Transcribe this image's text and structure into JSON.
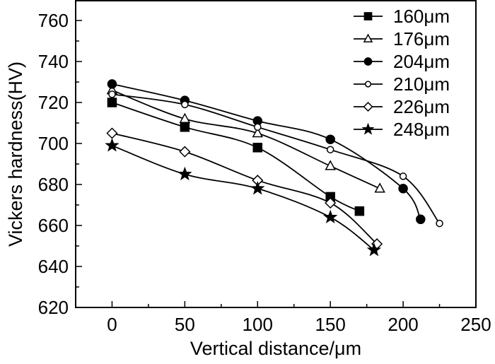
{
  "chart_data": {
    "type": "line",
    "title": "",
    "xlabel": "Vertical distance/μm",
    "ylabel": "Vickers hardness(HV)",
    "xlim": [
      -25,
      250
    ],
    "ylim": [
      620,
      770
    ],
    "xticks": [
      0,
      50,
      100,
      150,
      200,
      250
    ],
    "yticks": [
      620,
      640,
      660,
      680,
      700,
      720,
      740,
      760
    ],
    "xtick_labels": [
      "0",
      "50",
      "100",
      "150",
      "200",
      "250"
    ],
    "ytick_labels": [
      "620",
      "640",
      "660",
      "680",
      "700",
      "720",
      "740",
      "760"
    ],
    "grid": false,
    "legend_placement": "top-right",
    "series": [
      {
        "name": "160μm",
        "marker": "filled-square",
        "x": [
          0,
          50,
          100,
          150,
          170
        ],
        "y": [
          720,
          708,
          698,
          674,
          667
        ]
      },
      {
        "name": "176μm",
        "marker": "open-triangle",
        "x": [
          0,
          50,
          100,
          150,
          184
        ],
        "y": [
          726,
          712,
          705,
          689,
          678
        ]
      },
      {
        "name": "204μm",
        "marker": "filled-circle",
        "x": [
          0,
          50,
          100,
          150,
          200,
          212
        ],
        "y": [
          729,
          721,
          711,
          702,
          678,
          663
        ]
      },
      {
        "name": "210μm",
        "marker": "open-circle",
        "x": [
          0,
          50,
          100,
          150,
          200,
          225
        ],
        "y": [
          724,
          719,
          708,
          697,
          684,
          661
        ]
      },
      {
        "name": "226μm",
        "marker": "open-diamond",
        "x": [
          0,
          50,
          100,
          150,
          182
        ],
        "y": [
          705,
          696,
          682,
          671,
          651
        ]
      },
      {
        "name": "248μm",
        "marker": "filled-star",
        "x": [
          0,
          50,
          100,
          150,
          180
        ],
        "y": [
          699,
          685,
          678,
          664,
          648
        ]
      }
    ]
  }
}
